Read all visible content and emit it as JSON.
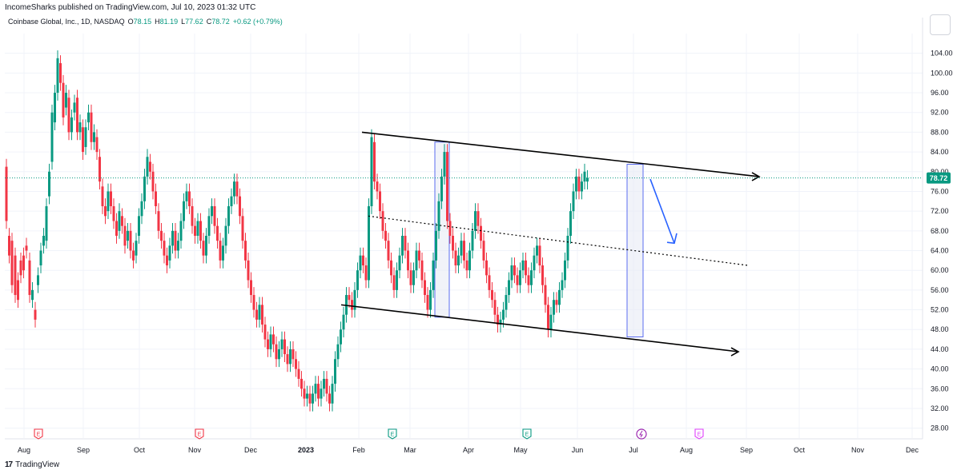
{
  "header": {
    "published": "IncomeSharks published on TradingView.com, Jul 10, 2023 01:32 UTC"
  },
  "legend": {
    "symbol": "Coinbase Global, Inc., 1D, NASDAQ",
    "open": "78.15",
    "high": "81.19",
    "low": "77.62",
    "close": "78.72",
    "change": "+0.62 (+0.79%)"
  },
  "brand": {
    "name": "TradingView",
    "logo": "17"
  },
  "colors": {
    "up": "#089981",
    "down": "#f23645",
    "grid": "#f0f3fa",
    "axis_text": "#131722",
    "price_line": "#089981",
    "trendline": "#000000",
    "highlight_fill": "#e8ebf5",
    "highlight_stroke": "#5b6cf0",
    "arrow_blue": "#2962ff",
    "earnings_red": "#f23645",
    "earnings_green": "#089981",
    "dividend_purple": "#9c27b0",
    "earnings_magenta": "#e040fb"
  },
  "chart_data": {
    "type": "candlestick",
    "symbol": "COIN",
    "interval": "1D",
    "ylim": [
      26,
      108
    ],
    "y_ticks": [
      "104.00",
      "100.00",
      "96.00",
      "92.00",
      "88.00",
      "84.00",
      "80.00",
      "76.00",
      "72.00",
      "68.00",
      "64.00",
      "60.00",
      "56.00",
      "52.00",
      "48.00",
      "44.00",
      "40.00",
      "36.00",
      "32.00",
      "28.00"
    ],
    "x_ticks": [
      "Aug",
      "Sep",
      "Oct",
      "Nov",
      "Dec",
      "2023",
      "Feb",
      "Mar",
      "Apr",
      "May",
      "Jun",
      "Jul",
      "Aug",
      "Sep",
      "Oct",
      "Nov",
      "Dec"
    ],
    "last_price": 78.72,
    "last_price_label": "78.72",
    "candles": [
      [
        7.6,
        81,
        70
      ],
      [
        8.3,
        67,
        63
      ],
      [
        9,
        66,
        57
      ],
      [
        9.8,
        63,
        55
      ],
      [
        10.5,
        58,
        54
      ],
      [
        11.2,
        62,
        59
      ],
      [
        11.9,
        63,
        60
      ],
      [
        12.6,
        65,
        64
      ],
      [
        13.4,
        62,
        55
      ],
      [
        14.1,
        54,
        56
      ],
      [
        14.8,
        52,
        50
      ],
      [
        15.5,
        57,
        59
      ],
      [
        16.2,
        61,
        64
      ],
      [
        16.9,
        65,
        67
      ],
      [
        17.6,
        66,
        73
      ],
      [
        18.3,
        75,
        80
      ],
      [
        19,
        82,
        92
      ],
      [
        19.7,
        90,
        96
      ],
      [
        20.4,
        96,
        103
      ],
      [
        21.1,
        102,
        98
      ],
      [
        21.8,
        98,
        91
      ],
      [
        22.5,
        93,
        96
      ],
      [
        23.2,
        95,
        88
      ],
      [
        23.9,
        88,
        91
      ],
      [
        24.6,
        92,
        94
      ],
      [
        25.3,
        95,
        88
      ],
      [
        26,
        88,
        90
      ],
      [
        26.7,
        89,
        84
      ],
      [
        27.4,
        85,
        89
      ],
      [
        28.1,
        90,
        92
      ],
      [
        28.8,
        92,
        86
      ],
      [
        29.5,
        86,
        88
      ],
      [
        30.2,
        87,
        84
      ],
      [
        30.9,
        83,
        78
      ],
      [
        31.6,
        77,
        73
      ],
      [
        32.3,
        73,
        71
      ],
      [
        33,
        72,
        76
      ],
      [
        33.7,
        76,
        73
      ],
      [
        34.4,
        73,
        70
      ],
      [
        35.1,
        70,
        67
      ],
      [
        35.8,
        68,
        72
      ],
      [
        36.5,
        71,
        69
      ],
      [
        37.2,
        69,
        65
      ],
      [
        37.9,
        66,
        68
      ],
      [
        38.6,
        68,
        64
      ],
      [
        39.3,
        64,
        62
      ],
      [
        40,
        63,
        66
      ],
      [
        40.7,
        67,
        71
      ],
      [
        41.4,
        71,
        74
      ],
      [
        42.1,
        74,
        79
      ],
      [
        42.8,
        79,
        83
      ],
      [
        43.5,
        82,
        80
      ],
      [
        44.2,
        80,
        76
      ],
      [
        44.9,
        76,
        73
      ],
      [
        45.6,
        72,
        68
      ],
      [
        46.3,
        68,
        66
      ],
      [
        47,
        66,
        63
      ],
      [
        47.7,
        63,
        61
      ],
      [
        48.4,
        62,
        65
      ],
      [
        49.1,
        65,
        68
      ],
      [
        49.8,
        68,
        64
      ],
      [
        50.5,
        64,
        66
      ],
      [
        51.2,
        66,
        70
      ],
      [
        51.9,
        70,
        74
      ],
      [
        52.6,
        74,
        76
      ],
      [
        53.3,
        76,
        73
      ],
      [
        54,
        73,
        69
      ],
      [
        54.7,
        69,
        67
      ],
      [
        55.4,
        67,
        70
      ],
      [
        56.1,
        70,
        66
      ],
      [
        56.8,
        66,
        63
      ],
      [
        57.5,
        63,
        67
      ],
      [
        58.2,
        67,
        71
      ],
      [
        58.9,
        71,
        73
      ],
      [
        59.6,
        73,
        69
      ],
      [
        60.3,
        69,
        66
      ],
      [
        61,
        66,
        62
      ],
      [
        61.7,
        62,
        65
      ],
      [
        62.4,
        65,
        69
      ],
      [
        63.1,
        69,
        73
      ],
      [
        63.8,
        73,
        75
      ],
      [
        64.5,
        75,
        78
      ],
      [
        65.2,
        78,
        75
      ],
      [
        65.9,
        75,
        71
      ],
      [
        66.6,
        71,
        66
      ],
      [
        67.3,
        66,
        62
      ],
      [
        68,
        62,
        58
      ],
      [
        68.7,
        58,
        55
      ],
      [
        69.4,
        55,
        52
      ],
      [
        70.1,
        52,
        50
      ],
      [
        70.8,
        50,
        53
      ],
      [
        71.5,
        53,
        49
      ],
      [
        72.2,
        49,
        46
      ],
      [
        72.9,
        46,
        44
      ],
      [
        73.6,
        44,
        47
      ],
      [
        74.3,
        47,
        45
      ],
      [
        75,
        45,
        42
      ],
      [
        75.7,
        42,
        44
      ],
      [
        76.4,
        44,
        46
      ],
      [
        77.1,
        46,
        43
      ],
      [
        77.8,
        43,
        41
      ],
      [
        78.5,
        41,
        44
      ],
      [
        79.2,
        44,
        42
      ],
      [
        79.9,
        42,
        40
      ],
      [
        80.6,
        40,
        38
      ],
      [
        81.3,
        38,
        36
      ],
      [
        82,
        36,
        34
      ],
      [
        82.7,
        34,
        35
      ],
      [
        83.4,
        35,
        33
      ],
      [
        84.1,
        33,
        35
      ],
      [
        84.8,
        35,
        37
      ],
      [
        85.5,
        37,
        34
      ],
      [
        86.2,
        34,
        36
      ],
      [
        86.9,
        36,
        38
      ],
      [
        87.6,
        38,
        35
      ],
      [
        88.3,
        35,
        33
      ],
      [
        89,
        33,
        37
      ],
      [
        89.7,
        37,
        42
      ],
      [
        90.4,
        42,
        45
      ],
      [
        91.1,
        45,
        48
      ],
      [
        91.8,
        48,
        51
      ],
      [
        92.5,
        51,
        55
      ],
      [
        93.2,
        55,
        54
      ],
      [
        93.9,
        54,
        52
      ],
      [
        94.6,
        52,
        56
      ],
      [
        95.3,
        56,
        60
      ],
      [
        96,
        60,
        63
      ],
      [
        96.7,
        63,
        61
      ],
      [
        97.4,
        61,
        58
      ],
      [
        98.1,
        58,
        73
      ],
      [
        98.8,
        73,
        87
      ],
      [
        99.5,
        86,
        78
      ],
      [
        100.2,
        78,
        76
      ],
      [
        100.9,
        76,
        72
      ],
      [
        101.6,
        72,
        68
      ],
      [
        102.3,
        68,
        66
      ],
      [
        103,
        66,
        62
      ],
      [
        103.7,
        62,
        59
      ],
      [
        104.4,
        59,
        56
      ],
      [
        105.1,
        56,
        60
      ],
      [
        105.8,
        60,
        63
      ],
      [
        106.5,
        63,
        67
      ],
      [
        107.2,
        67,
        64
      ],
      [
        107.9,
        64,
        60
      ],
      [
        108.6,
        60,
        57
      ],
      [
        109.3,
        57,
        60
      ],
      [
        110,
        60,
        64
      ],
      [
        110.7,
        64,
        62
      ],
      [
        111.4,
        62,
        58
      ],
      [
        112.1,
        58,
        55
      ],
      [
        112.8,
        55,
        52
      ],
      [
        113.5,
        52,
        56
      ],
      [
        114.2,
        56,
        62
      ],
      [
        114.9,
        62,
        68
      ],
      [
        115.6,
        68,
        74
      ],
      [
        116.3,
        74,
        79
      ],
      [
        117,
        79,
        84
      ],
      [
        117.7,
        84,
        70
      ],
      [
        118.4,
        70,
        67
      ],
      [
        119.1,
        67,
        64
      ],
      [
        119.8,
        64,
        61
      ],
      [
        120.5,
        61,
        63
      ],
      [
        121.2,
        63,
        66
      ],
      [
        121.9,
        66,
        62
      ],
      [
        122.6,
        62,
        60
      ],
      [
        123.3,
        60,
        64
      ],
      [
        124,
        64,
        68
      ],
      [
        124.7,
        68,
        72
      ],
      [
        125.4,
        72,
        69
      ],
      [
        126.1,
        69,
        66
      ],
      [
        126.8,
        66,
        62
      ],
      [
        127.5,
        62,
        59
      ],
      [
        128.2,
        59,
        56
      ],
      [
        128.9,
        56,
        54
      ],
      [
        129.6,
        54,
        51
      ],
      [
        130.3,
        51,
        49
      ],
      [
        131,
        49,
        50
      ],
      [
        131.7,
        50,
        52
      ],
      [
        132.4,
        52,
        55
      ],
      [
        133.1,
        55,
        58
      ],
      [
        133.8,
        58,
        61
      ],
      [
        134.5,
        61,
        59
      ],
      [
        135.2,
        59,
        57
      ],
      [
        135.9,
        57,
        60
      ],
      [
        136.6,
        60,
        62
      ],
      [
        137.3,
        62,
        59
      ],
      [
        138,
        59,
        57
      ],
      [
        138.7,
        57,
        60
      ],
      [
        139.4,
        60,
        63
      ],
      [
        140.1,
        63,
        65
      ],
      [
        140.8,
        65,
        61
      ],
      [
        141.5,
        61,
        57
      ],
      [
        142.2,
        57,
        53
      ],
      [
        142.9,
        53,
        48
      ],
      [
        143.6,
        48,
        51
      ],
      [
        144.3,
        51,
        54
      ],
      [
        145,
        54,
        53
      ],
      [
        145.7,
        53,
        56
      ],
      [
        146.4,
        56,
        58
      ],
      [
        147.1,
        58,
        62
      ],
      [
        147.8,
        62,
        67
      ],
      [
        148.5,
        67,
        72
      ],
      [
        149.2,
        72,
        76
      ],
      [
        149.9,
        76,
        79
      ],
      [
        150.6,
        79,
        76
      ],
      [
        151.3,
        76,
        78
      ],
      [
        152,
        78,
        80
      ],
      [
        152.7,
        78,
        78.7
      ]
    ],
    "trendlines": [
      {
        "style": "solid",
        "from": [
          "Feb",
          88
        ],
        "to": [
          "Sep",
          79
        ]
      },
      {
        "style": "solid",
        "from": [
          "Jan",
          53
        ],
        "to": [
          "Sep",
          43.5
        ]
      },
      {
        "style": "dotted",
        "from": [
          "Feb",
          71
        ],
        "to": [
          "Sep",
          61
        ]
      }
    ],
    "highlight_ranges": [
      {
        "low": 50.5,
        "high": 86
      },
      {
        "low": 46.5,
        "high": 81.5
      }
    ],
    "events": [
      "E",
      "E",
      "E",
      "E",
      "dividend",
      "E"
    ]
  }
}
